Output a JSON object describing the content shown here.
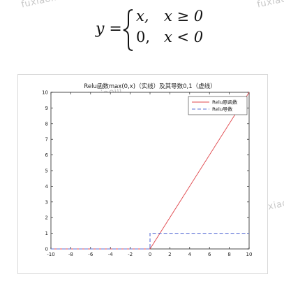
{
  "formula": {
    "lhs": "y =",
    "case1_expr": "x,",
    "case1_cond": "x ≥ 0",
    "case2_expr": "0,",
    "case2_cond": "x < 0"
  },
  "watermark": "fuxiaoiii",
  "chart_data": {
    "type": "line",
    "title": "Relu函数max(0,x)（实线）及其导数0,1（虚线）",
    "xlabel": "",
    "ylabel": "",
    "xlim": [
      -10,
      10
    ],
    "ylim": [
      0,
      10
    ],
    "xticks": [
      -10,
      -8,
      -6,
      -4,
      -2,
      0,
      2,
      4,
      6,
      8,
      10
    ],
    "yticks": [
      0,
      1,
      2,
      3,
      4,
      5,
      6,
      7,
      8,
      9,
      10
    ],
    "grid": false,
    "legend_position": "top-right",
    "series": [
      {
        "name": "Relu原函数",
        "style": "solid",
        "color": "#e0474c",
        "x": [
          -10,
          0,
          10
        ],
        "y": [
          0,
          0,
          10
        ]
      },
      {
        "name": "Relu导数",
        "style": "dashed",
        "color": "#5a6fd6",
        "x": [
          -10,
          0,
          0,
          10
        ],
        "y": [
          0,
          0,
          1,
          1
        ]
      }
    ]
  }
}
